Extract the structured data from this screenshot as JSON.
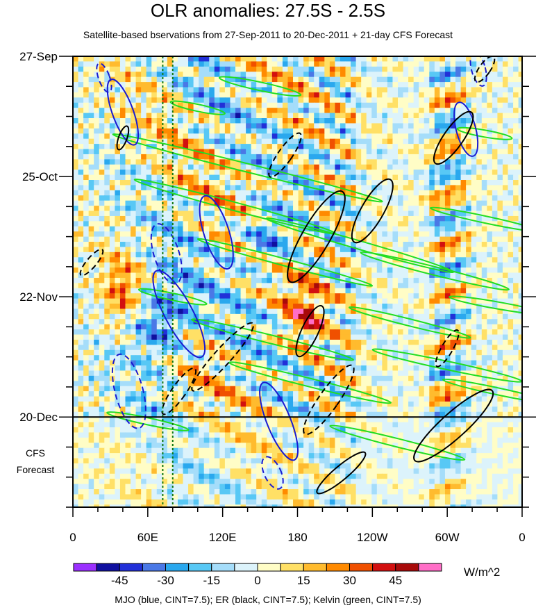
{
  "chart_data": {
    "type": "heatmap",
    "title": "OLR anomalies: 27.5S - 2.5S",
    "subtitle": "Satellite-based bservations from 27-Sep-2011 to 20-Dec-2011 + 21-day CFS Forecast",
    "x_ticks": [
      "0",
      "60E",
      "120E",
      "180",
      "120W",
      "60W",
      "0"
    ],
    "x_tick_longitudes": [
      0,
      60,
      120,
      180,
      240,
      300,
      360
    ],
    "y_ticks": [
      "27-Sep",
      "25-Oct",
      "22-Nov",
      "20-Dec"
    ],
    "y_tick_days": [
      0,
      28,
      56,
      84
    ],
    "y_range_days": [
      0,
      105
    ],
    "observation_end_day": 84,
    "forecast_label": [
      "CFS",
      "Forecast"
    ],
    "colorbar": {
      "tick_labels": [
        "-45",
        "-30",
        "-15",
        "0",
        "15",
        "30",
        "45"
      ],
      "tick_values": [
        -45,
        -30,
        -15,
        0,
        15,
        30,
        45
      ],
      "levels": [
        -52.5,
        -45,
        -37.5,
        -30,
        -22.5,
        -15,
        -7.5,
        0,
        7.5,
        15,
        22.5,
        30,
        37.5,
        45,
        52.5
      ],
      "colors": [
        "#9b30ff",
        "#10109f",
        "#2230d8",
        "#4a78e6",
        "#2aa8ee",
        "#58c8f5",
        "#a5ddfa",
        "#dcf3fb",
        "#fffdc6",
        "#ffe066",
        "#ffbb2e",
        "#ff8a00",
        "#f05000",
        "#d21010",
        "#a80a0a",
        "#ff6ec7"
      ],
      "units": "W/m^2"
    },
    "contour_legend": "MJO (blue, CINT=7.5); ER (black, CINT=7.5); Kelvin (green, CINT=7.5)",
    "reference_longitudes": [
      72,
      80
    ],
    "colors": {
      "mjo": "#1a1ad0",
      "er": "#000000",
      "kelvin": "#22dd22",
      "ref_line": "#117711"
    }
  }
}
